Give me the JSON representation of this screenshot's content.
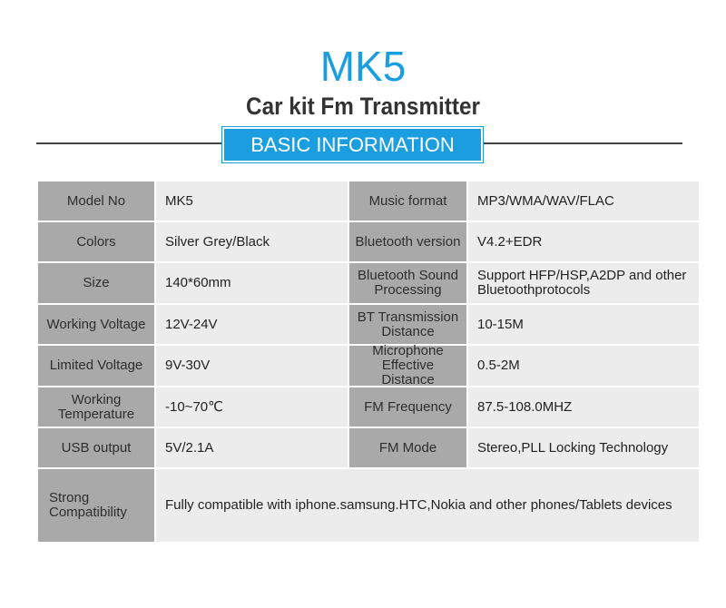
{
  "header": {
    "title": "MK5",
    "subtitle": "Car kit Fm Transmitter",
    "section": "BASIC INFORMATION"
  },
  "table": {
    "rows": [
      [
        "Model No",
        "MK5",
        "Music format",
        "MP3/WMA/WAV/FLAC"
      ],
      [
        "Colors",
        "Silver Grey/Black",
        "Bluetooth version",
        "V4.2+EDR"
      ],
      [
        "Size",
        "140*60mm",
        "Bluetooth Sound Processing",
        "Support HFP/HSP,A2DP and other Bluetoothprotocols"
      ],
      [
        "Working Voltage",
        "12V-24V",
        "BT Transmission Distance",
        "10-15M"
      ],
      [
        "Limited Voltage",
        "9V-30V",
        "Microphone Effective Distance",
        "0.5-2M"
      ],
      [
        "Working Temperature",
        "-10~70℃",
        "FM Frequency",
        "87.5-108.0MHZ"
      ],
      [
        "USB output",
        "5V/2.1A",
        "FM Mode",
        "Stereo,PLL Locking Technology"
      ],
      [
        "Strong Compatibility",
        "Fully compatible with iphone.samsung.HTC,Nokia and other phones/Tablets devices"
      ]
    ]
  }
}
